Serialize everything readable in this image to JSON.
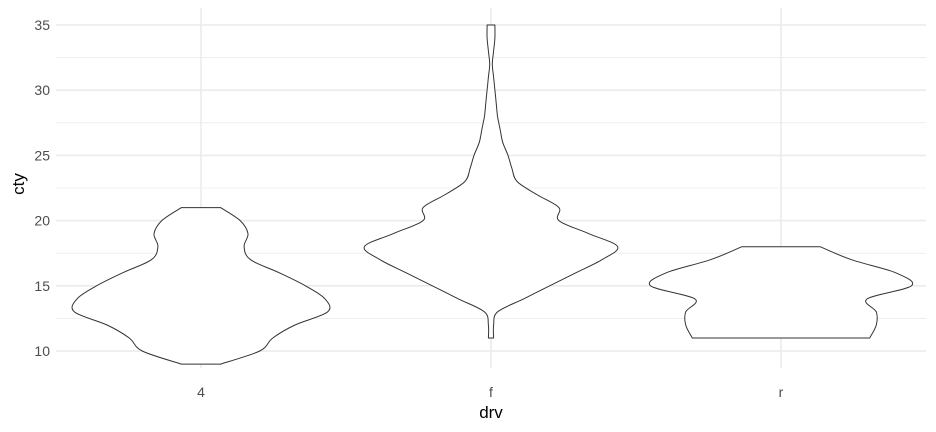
{
  "chart_data": {
    "type": "violin",
    "xlabel": "drv",
    "ylabel": "cty",
    "categories": [
      "4",
      "f",
      "r"
    ],
    "ylim": [
      8.7,
      36.3
    ],
    "yticks": [
      10,
      15,
      20,
      25,
      30,
      35
    ],
    "grid": true,
    "colors": {
      "grid": "#ebebeb",
      "outline": "#333333",
      "fill": "#ffffff"
    },
    "series": [
      {
        "category": "4",
        "y": [
          9,
          10,
          11,
          12,
          13,
          14,
          15,
          16,
          17,
          18,
          19,
          20,
          21
        ],
        "halfwidth": [
          0.15,
          0.45,
          0.55,
          0.72,
          0.97,
          0.95,
          0.8,
          0.6,
          0.38,
          0.33,
          0.36,
          0.3,
          0.15
        ]
      },
      {
        "category": "f",
        "y": [
          11,
          12,
          13,
          14,
          15,
          16,
          17,
          18,
          19,
          20,
          21,
          22,
          23,
          24,
          25,
          26,
          27,
          28,
          29,
          30,
          31,
          32,
          33,
          34,
          35
        ],
        "halfwidth": [
          0.02,
          0.02,
          0.05,
          0.25,
          0.45,
          0.65,
          0.85,
          0.97,
          0.75,
          0.52,
          0.52,
          0.35,
          0.2,
          0.16,
          0.13,
          0.09,
          0.07,
          0.05,
          0.04,
          0.03,
          0.02,
          0.01,
          0.02,
          0.03,
          0.03
        ]
      },
      {
        "category": "r",
        "y": [
          11,
          12,
          13,
          14,
          15,
          16,
          17,
          18
        ],
        "halfwidth": [
          0.68,
          0.73,
          0.73,
          0.66,
          1.0,
          0.88,
          0.54,
          0.3
        ]
      }
    ]
  }
}
